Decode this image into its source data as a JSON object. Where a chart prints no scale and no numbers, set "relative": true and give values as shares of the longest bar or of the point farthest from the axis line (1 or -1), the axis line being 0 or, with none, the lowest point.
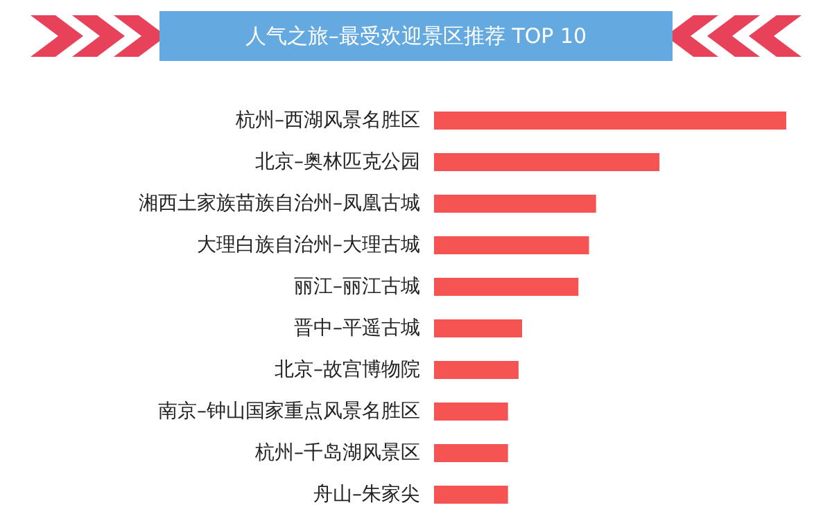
{
  "chart_data": {
    "type": "bar",
    "orientation": "horizontal",
    "relative": true,
    "title": "人气之旅–最受欢迎景区推荐 TOP 10",
    "categories": [
      "杭州–西湖风景名胜区",
      "北京–奥林匹克公园",
      "湘西土家族苗族自治州–凤凰古城",
      "大理白族自治州–大理古城",
      "丽江–丽江古城",
      "晋中–平遥古城",
      "北京–故宫博物院",
      "南京–钟山国家重点风景名胜区",
      "杭州–千岛湖风景区",
      "舟山–朱家尖"
    ],
    "values": [
      1,
      0.64,
      0.46,
      0.44,
      0.41,
      0.25,
      0.24,
      0.21,
      0.21,
      0.21
    ],
    "color": "#f65353"
  }
}
